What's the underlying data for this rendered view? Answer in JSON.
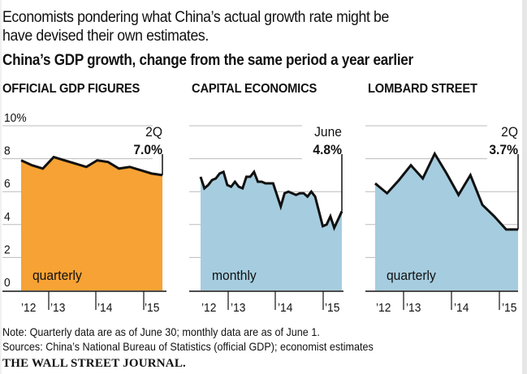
{
  "intro": {
    "line1": "Economists pondering what China’s actual growth rate might be",
    "line2": "have devised their own estimates."
  },
  "title": "China’s GDP growth, change from the same period a year earlier",
  "notes": {
    "note": "Note: Quarterly data are as of June 30; monthly data are as of June 1.",
    "sources": "Sources: China’s National Bureau of Statistics (official GDP); economist estimates",
    "publisher": "THE WALL STREET JOURNAL."
  },
  "colors": {
    "official_fill": "#f7a234",
    "estimate_fill": "#a6cddf",
    "line": "#111111",
    "grid": "#bbbbbb"
  },
  "chart_data": [
    {
      "type": "area",
      "title": "OFFICIAL GDP FIGURES",
      "frequency_label": "quarterly",
      "end_label": "2Q",
      "end_value_label": "7.0%",
      "x": [
        "2012Q1",
        "2012Q2",
        "2012Q3",
        "2012Q4",
        "2013Q1",
        "2013Q2",
        "2013Q3",
        "2013Q4",
        "2014Q1",
        "2014Q2",
        "2014Q3",
        "2014Q4",
        "2015Q1",
        "2015Q2"
      ],
      "values": [
        7.9,
        7.6,
        7.4,
        8.1,
        7.9,
        7.7,
        7.5,
        7.9,
        7.8,
        7.4,
        7.5,
        7.3,
        7.1,
        7.0
      ],
      "x_ticks": [
        "’12",
        "’13",
        "’14",
        "’15"
      ],
      "y_ticks": [
        "10%",
        "8",
        "6",
        "4",
        "2",
        "0"
      ],
      "ylim": [
        0,
        10
      ],
      "fill": "#f7a234"
    },
    {
      "type": "area",
      "title": "CAPITAL ECONOMICS",
      "frequency_label": "monthly",
      "end_label": "June",
      "end_value_label": "4.8%",
      "x": [
        "2012-05",
        "2012-06",
        "2012-07",
        "2012-08",
        "2012-09",
        "2012-10",
        "2012-11",
        "2012-12",
        "2013-01",
        "2013-02",
        "2013-03",
        "2013-04",
        "2013-05",
        "2013-06",
        "2013-07",
        "2013-08",
        "2013-09",
        "2013-10",
        "2013-11",
        "2013-12",
        "2014-01",
        "2014-02",
        "2014-03",
        "2014-04",
        "2014-05",
        "2014-06",
        "2014-07",
        "2014-08",
        "2014-09",
        "2014-10",
        "2014-11",
        "2014-12",
        "2015-01",
        "2015-02",
        "2015-03",
        "2015-04",
        "2015-05",
        "2015-06"
      ],
      "values": [
        6.9,
        6.2,
        6.4,
        6.7,
        6.8,
        7.1,
        7.2,
        6.4,
        6.3,
        6.6,
        6.3,
        6.2,
        6.9,
        6.9,
        7.2,
        6.6,
        6.6,
        6.5,
        6.5,
        6.5,
        5.8,
        5.1,
        5.9,
        6.0,
        5.9,
        5.8,
        5.9,
        5.9,
        5.7,
        6.0,
        5.7,
        4.8,
        3.9,
        4.0,
        4.5,
        3.8,
        4.3,
        4.8
      ],
      "x_ticks": [
        "’12",
        "’13",
        "’14",
        "’15"
      ],
      "ylim": [
        0,
        10
      ],
      "fill": "#a6cddf"
    },
    {
      "type": "area",
      "title": "LOMBARD STREET",
      "frequency_label": "quarterly",
      "end_label": "2Q",
      "end_value_label": "3.7%",
      "x": [
        "2012Q2",
        "2012Q3",
        "2012Q4",
        "2013Q1",
        "2013Q2",
        "2013Q3",
        "2013Q4",
        "2014Q1",
        "2014Q2",
        "2014Q3",
        "2014Q4",
        "2015Q1",
        "2015Q2"
      ],
      "values": [
        6.5,
        5.9,
        6.7,
        7.6,
        6.8,
        8.3,
        7.1,
        5.8,
        7.0,
        5.2,
        4.5,
        3.7,
        3.7
      ],
      "x_ticks": [
        "’12",
        "’13",
        "’14",
        "’15"
      ],
      "ylim": [
        0,
        10
      ],
      "fill": "#a6cddf"
    }
  ]
}
